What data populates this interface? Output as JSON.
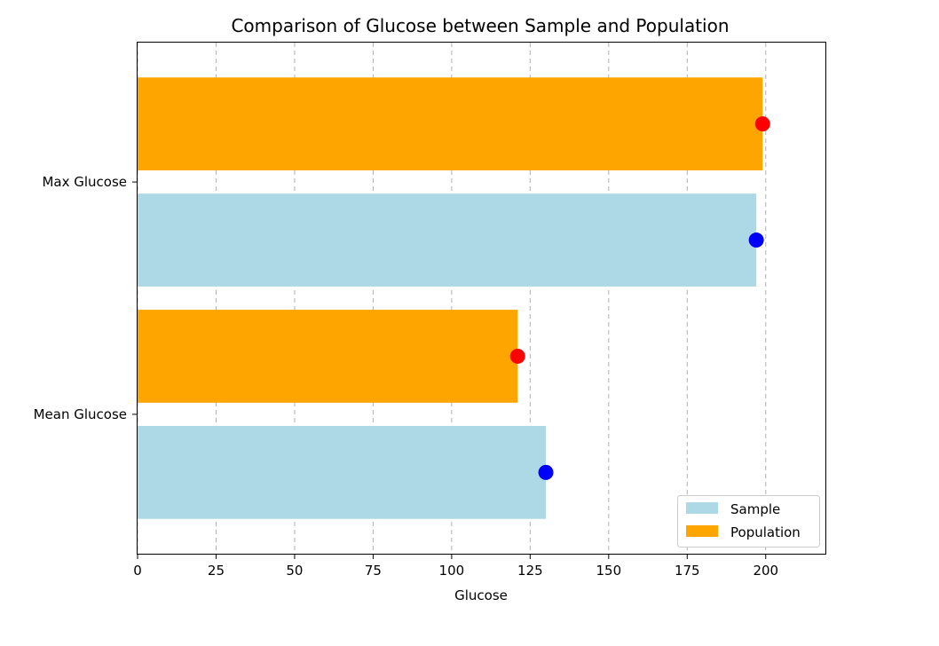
{
  "chart_data": {
    "type": "bar",
    "orientation": "horizontal",
    "title": "Comparison of Glucose between Sample and Population",
    "xlabel": "Glucose",
    "ylabel": "",
    "xlim": [
      0,
      219
    ],
    "xticks": [
      0,
      25,
      50,
      75,
      100,
      125,
      150,
      175,
      200
    ],
    "grid": "x-dashed",
    "legend_position": "lower-right",
    "categories": [
      "Mean Glucose",
      "Max Glucose"
    ],
    "series": [
      {
        "name": "Sample",
        "values": [
          130,
          197
        ],
        "color": "#add8e6",
        "marker_color": "#0000ff"
      },
      {
        "name": "Population",
        "values": [
          121,
          199
        ],
        "color": "#ffa500",
        "marker_color": "#ff0000"
      }
    ]
  }
}
